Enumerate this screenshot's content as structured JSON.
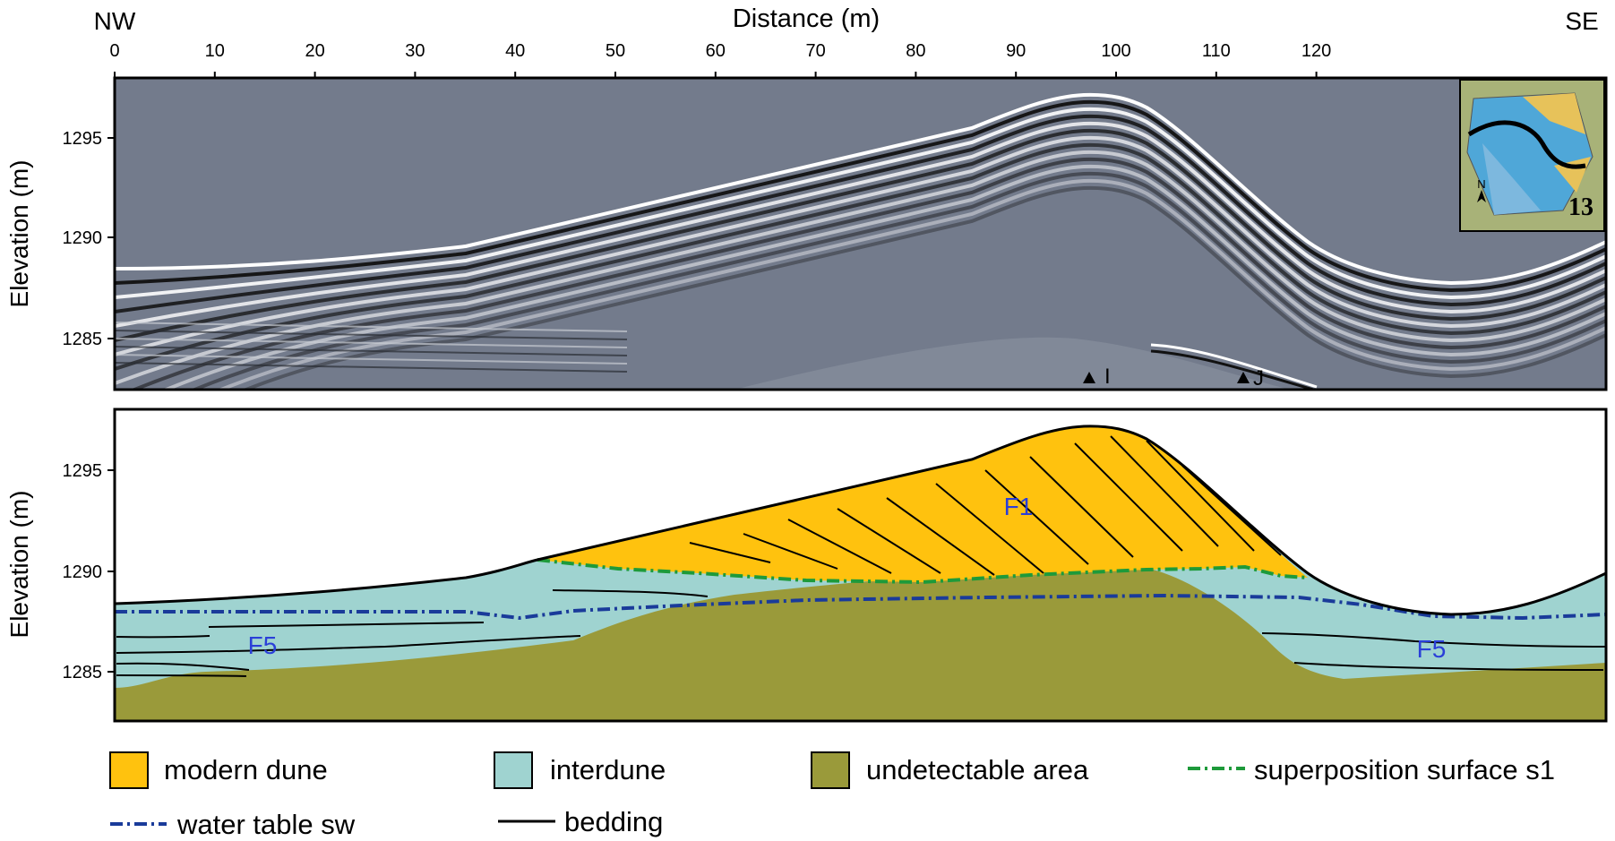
{
  "header": {
    "left_dir": "NW",
    "right_dir": "SE",
    "x_title": "Distance (m)",
    "x_ticks": [
      "0",
      "10",
      "20",
      "30",
      "40",
      "50",
      "60",
      "70",
      "80",
      "90",
      "100",
      "110",
      "120"
    ]
  },
  "top_panel": {
    "y_title": "Elevation (m)",
    "y_ticks": [
      "1295",
      "1290",
      "1285"
    ],
    "marker_i": "I",
    "marker_j": "J",
    "inset_number": "13",
    "inset_north": "N"
  },
  "bottom_panel": {
    "y_title": "Elevation (m)",
    "y_ticks": [
      "1295",
      "1290",
      "1285"
    ],
    "unit_f1": "F1",
    "unit_f5_left": "F5",
    "unit_f5_right": "F5"
  },
  "legend": {
    "modern_dune": "modern dune",
    "interdune": "interdune",
    "undetectable": "undetectable area",
    "superposition": "superposition surface s1",
    "water_table": "water table sw",
    "bedding": "bedding"
  },
  "colors": {
    "modern_dune": "#FFC20E",
    "interdune": "#9FD3D0",
    "undetectable": "#9A9A3A",
    "superposition": "#1E9A3A",
    "water_table": "#1A3B9A",
    "radar_bg": "#737B8C",
    "label_blue": "#2A3FD8"
  }
}
